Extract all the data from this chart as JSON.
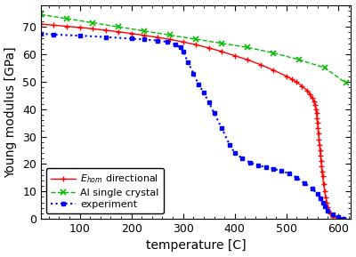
{
  "title": "",
  "xlabel": "temperature [C]",
  "ylabel": "Young modulus [GPa]",
  "xlim": [
    25,
    625
  ],
  "ylim": [
    0,
    78
  ],
  "yticks": [
    0,
    10,
    20,
    30,
    40,
    50,
    60,
    70
  ],
  "xticks": [
    100,
    200,
    300,
    400,
    500,
    600
  ],
  "red_x": [
    25,
    50,
    75,
    100,
    125,
    150,
    175,
    200,
    225,
    250,
    275,
    300,
    325,
    350,
    375,
    400,
    425,
    450,
    475,
    500,
    510,
    520,
    530,
    540,
    545,
    550,
    553,
    555,
    557,
    558,
    559,
    560,
    561,
    562,
    563,
    564,
    565,
    566,
    567,
    568,
    569,
    570,
    572,
    574,
    576,
    578,
    580,
    582,
    585,
    590,
    600,
    610
  ],
  "red_y": [
    71.0,
    70.6,
    70.2,
    69.8,
    69.3,
    68.8,
    68.2,
    67.6,
    66.9,
    66.2,
    65.4,
    64.5,
    63.5,
    62.3,
    61.0,
    59.5,
    58.0,
    56.2,
    54.2,
    52.0,
    51.0,
    49.8,
    48.4,
    46.8,
    45.5,
    44.0,
    42.8,
    41.5,
    40.0,
    38.5,
    36.8,
    35.0,
    33.0,
    31.0,
    29.0,
    27.0,
    25.0,
    23.0,
    21.0,
    19.0,
    17.2,
    15.5,
    12.5,
    10.0,
    7.8,
    5.8,
    4.2,
    3.0,
    1.8,
    0.8,
    0.2,
    0.05
  ],
  "green_x": [
    25,
    75,
    125,
    175,
    225,
    275,
    325,
    375,
    425,
    475,
    525,
    575,
    615
  ],
  "green_y": [
    74.5,
    73.0,
    71.5,
    70.0,
    68.5,
    67.0,
    65.5,
    64.0,
    62.5,
    60.5,
    58.0,
    55.0,
    49.5
  ],
  "blue_x": [
    25,
    50,
    100,
    150,
    200,
    225,
    250,
    270,
    285,
    295,
    300,
    310,
    320,
    330,
    340,
    350,
    360,
    375,
    390,
    400,
    415,
    430,
    445,
    460,
    475,
    490,
    505,
    520,
    535,
    550,
    560,
    565,
    570,
    575,
    580,
    590,
    600,
    610
  ],
  "blue_y": [
    67.5,
    67.2,
    66.8,
    66.3,
    65.7,
    65.4,
    65.0,
    64.5,
    63.5,
    62.5,
    61.0,
    57.0,
    53.0,
    49.0,
    46.0,
    42.5,
    38.5,
    33.0,
    27.0,
    24.0,
    22.0,
    20.5,
    19.5,
    18.8,
    18.2,
    17.5,
    16.5,
    15.0,
    13.0,
    11.0,
    9.0,
    7.5,
    6.0,
    4.5,
    3.0,
    1.5,
    0.5,
    0.1
  ],
  "red_color": "#ff0000",
  "green_color": "#00bb00",
  "blue_color": "#0000ff",
  "legend_labels": [
    "$E_{hom}$ directional",
    "Al single crystal",
    "experiment"
  ],
  "figsize": [
    4.0,
    2.89
  ],
  "dpi": 100,
  "tick_fontsize": 9,
  "label_fontsize": 10
}
